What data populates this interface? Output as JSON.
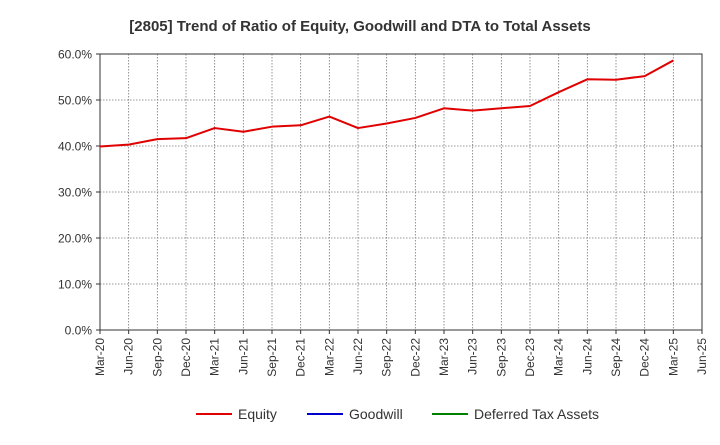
{
  "chart_data": {
    "type": "line",
    "title": "[2805]  Trend of Ratio of Equity, Goodwill and DTA to Total Assets",
    "xlabel": "",
    "ylabel": "",
    "ylim": [
      0,
      60
    ],
    "yticks": [
      "0.0%",
      "10.0%",
      "20.0%",
      "30.0%",
      "40.0%",
      "50.0%",
      "60.0%"
    ],
    "ytick_values": [
      0,
      10,
      20,
      30,
      40,
      50,
      60
    ],
    "x_ticks": [
      "Mar-20",
      "Jun-20",
      "Sep-20",
      "Dec-20",
      "Mar-21",
      "Jun-21",
      "Sep-21",
      "Dec-21",
      "Mar-22",
      "Jun-22",
      "Sep-22",
      "Dec-22",
      "Mar-23",
      "Jun-23",
      "Sep-23",
      "Dec-23",
      "Mar-24",
      "Jun-24",
      "Sep-24",
      "Dec-24",
      "Mar-25",
      "Jun-25"
    ],
    "grid": true,
    "legend_position": "bottom",
    "series": [
      {
        "name": "Equity",
        "color": "#e00000",
        "values": [
          39.9,
          40.3,
          41.5,
          41.7,
          43.9,
          43.1,
          44.2,
          44.5,
          46.4,
          43.9,
          44.9,
          46.1,
          48.2,
          47.7,
          48.2,
          48.7,
          51.7,
          54.5,
          54.4,
          55.2,
          58.6
        ]
      },
      {
        "name": "Goodwill",
        "color": "#0000cc",
        "values": []
      },
      {
        "name": "Deferred Tax Assets",
        "color": "#008000",
        "values": []
      }
    ]
  }
}
